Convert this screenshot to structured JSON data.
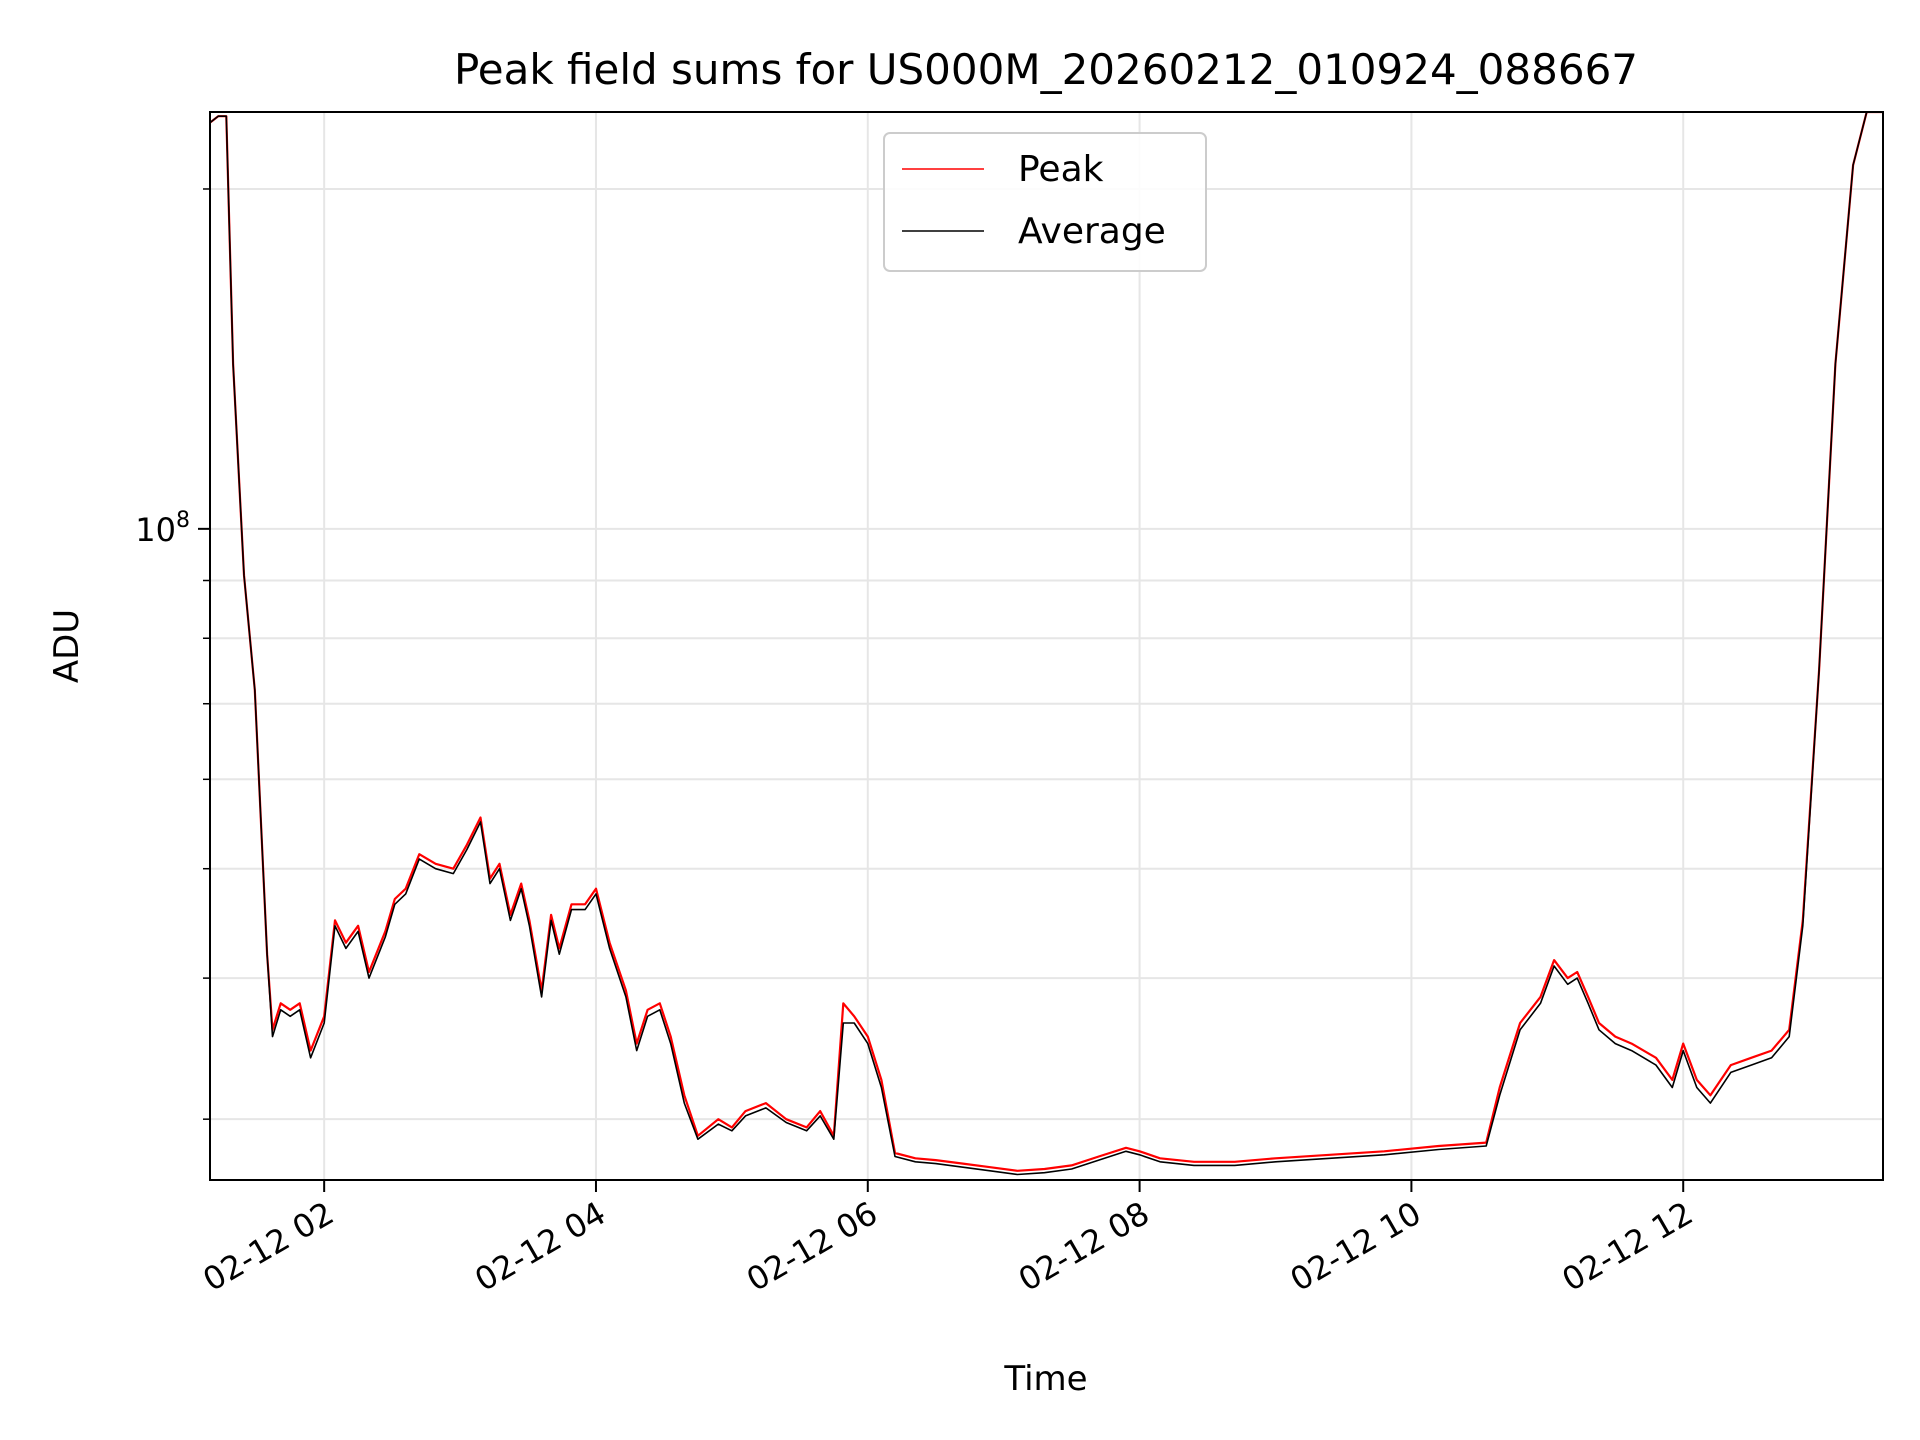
{
  "chart_data": {
    "type": "line",
    "title": "Peak field sums for US000M_20260212_010924_088667",
    "xlabel": "Time",
    "ylabel": "ADU",
    "yscale": "log",
    "ylim": [
      26500000,
      234000000
    ],
    "xlim": [
      1.16,
      13.47
    ],
    "x_ticks": [
      {
        "value": 2,
        "label": "02-12 02"
      },
      {
        "value": 4,
        "label": "02-12 04"
      },
      {
        "value": 6,
        "label": "02-12 06"
      },
      {
        "value": 8,
        "label": "02-12 08"
      },
      {
        "value": 10,
        "label": "02-12 10"
      },
      {
        "value": 12,
        "label": "02-12 12"
      }
    ],
    "y_major_tick": {
      "value": 100000000,
      "base": "10",
      "exponent": "8"
    },
    "y_minor_ticks": [
      30000000,
      40000000,
      50000000,
      60000000,
      70000000,
      80000000,
      90000000,
      200000000
    ],
    "grid": true,
    "legend_position": "upper-center",
    "series": [
      {
        "name": "Peak",
        "color": "#ff0000",
        "points": [
          [
            1.16,
            229000000
          ],
          [
            1.22,
            232000000
          ],
          [
            1.28,
            232000000
          ],
          [
            1.33,
            140000000
          ],
          [
            1.41,
            91000000
          ],
          [
            1.49,
            72000000
          ],
          [
            1.58,
            42000000
          ],
          [
            1.62,
            36000000
          ],
          [
            1.68,
            38000000
          ],
          [
            1.75,
            37500000
          ],
          [
            1.82,
            38000000
          ],
          [
            1.9,
            34500000
          ],
          [
            2.0,
            37000000
          ],
          [
            2.08,
            45000000
          ],
          [
            2.16,
            43000000
          ],
          [
            2.25,
            44500000
          ],
          [
            2.33,
            40500000
          ],
          [
            2.45,
            44000000
          ],
          [
            2.52,
            47000000
          ],
          [
            2.6,
            48000000
          ],
          [
            2.7,
            51500000
          ],
          [
            2.82,
            50500000
          ],
          [
            2.95,
            50000000
          ],
          [
            3.05,
            52500000
          ],
          [
            3.15,
            55500000
          ],
          [
            3.22,
            49000000
          ],
          [
            3.29,
            50500000
          ],
          [
            3.37,
            45500000
          ],
          [
            3.45,
            48500000
          ],
          [
            3.51,
            45000000
          ],
          [
            3.6,
            39000000
          ],
          [
            3.67,
            45500000
          ],
          [
            3.73,
            42500000
          ],
          [
            3.82,
            46500000
          ],
          [
            3.92,
            46500000
          ],
          [
            4.0,
            48000000
          ],
          [
            4.1,
            43000000
          ],
          [
            4.22,
            39000000
          ],
          [
            4.3,
            35000000
          ],
          [
            4.38,
            37500000
          ],
          [
            4.47,
            38000000
          ],
          [
            4.55,
            35500000
          ],
          [
            4.65,
            31500000
          ],
          [
            4.75,
            29000000
          ],
          [
            4.9,
            30000000
          ],
          [
            5.0,
            29500000
          ],
          [
            5.1,
            30500000
          ],
          [
            5.25,
            31000000
          ],
          [
            5.4,
            30000000
          ],
          [
            5.55,
            29500000
          ],
          [
            5.65,
            30500000
          ],
          [
            5.75,
            29000000
          ],
          [
            5.82,
            38000000
          ],
          [
            5.9,
            37000000
          ],
          [
            6.0,
            35500000
          ],
          [
            6.1,
            32500000
          ],
          [
            6.2,
            28000000
          ],
          [
            6.35,
            27700000
          ],
          [
            6.5,
            27600000
          ],
          [
            6.7,
            27400000
          ],
          [
            6.9,
            27200000
          ],
          [
            7.1,
            27000000
          ],
          [
            7.3,
            27100000
          ],
          [
            7.5,
            27300000
          ],
          [
            7.7,
            27800000
          ],
          [
            7.9,
            28300000
          ],
          [
            8.0,
            28100000
          ],
          [
            8.15,
            27700000
          ],
          [
            8.4,
            27500000
          ],
          [
            8.7,
            27500000
          ],
          [
            9.0,
            27700000
          ],
          [
            9.4,
            27900000
          ],
          [
            9.8,
            28100000
          ],
          [
            10.2,
            28400000
          ],
          [
            10.55,
            28600000
          ],
          [
            10.65,
            32000000
          ],
          [
            10.8,
            36500000
          ],
          [
            10.95,
            38500000
          ],
          [
            11.05,
            41500000
          ],
          [
            11.15,
            40000000
          ],
          [
            11.22,
            40500000
          ],
          [
            11.3,
            38500000
          ],
          [
            11.38,
            36500000
          ],
          [
            11.5,
            35500000
          ],
          [
            11.62,
            35000000
          ],
          [
            11.8,
            34000000
          ],
          [
            11.92,
            32500000
          ],
          [
            12.0,
            35000000
          ],
          [
            12.1,
            32500000
          ],
          [
            12.2,
            31500000
          ],
          [
            12.35,
            33500000
          ],
          [
            12.5,
            34000000
          ],
          [
            12.65,
            34500000
          ],
          [
            12.78,
            36000000
          ],
          [
            12.88,
            45000000
          ],
          [
            13.0,
            75000000
          ],
          [
            13.12,
            140000000
          ],
          [
            13.25,
            210000000
          ],
          [
            13.35,
            234000000
          ],
          [
            13.47,
            234000000
          ]
        ]
      },
      {
        "name": "Average",
        "color": "#000000",
        "points": [
          [
            1.16,
            229000000
          ],
          [
            1.22,
            232000000
          ],
          [
            1.28,
            232000000
          ],
          [
            1.33,
            140000000
          ],
          [
            1.41,
            91000000
          ],
          [
            1.49,
            72000000
          ],
          [
            1.58,
            42000000
          ],
          [
            1.62,
            35500000
          ],
          [
            1.68,
            37500000
          ],
          [
            1.75,
            37000000
          ],
          [
            1.82,
            37500000
          ],
          [
            1.9,
            34000000
          ],
          [
            2.0,
            36500000
          ],
          [
            2.08,
            44500000
          ],
          [
            2.16,
            42500000
          ],
          [
            2.25,
            44000000
          ],
          [
            2.33,
            40000000
          ],
          [
            2.45,
            43500000
          ],
          [
            2.52,
            46500000
          ],
          [
            2.6,
            47500000
          ],
          [
            2.7,
            51000000
          ],
          [
            2.82,
            50000000
          ],
          [
            2.95,
            49500000
          ],
          [
            3.05,
            52000000
          ],
          [
            3.15,
            55000000
          ],
          [
            3.22,
            48500000
          ],
          [
            3.29,
            50000000
          ],
          [
            3.37,
            45000000
          ],
          [
            3.45,
            48000000
          ],
          [
            3.51,
            44500000
          ],
          [
            3.6,
            38500000
          ],
          [
            3.67,
            45000000
          ],
          [
            3.73,
            42000000
          ],
          [
            3.82,
            46000000
          ],
          [
            3.92,
            46000000
          ],
          [
            4.0,
            47500000
          ],
          [
            4.1,
            42500000
          ],
          [
            4.22,
            38500000
          ],
          [
            4.3,
            34500000
          ],
          [
            4.38,
            37000000
          ],
          [
            4.47,
            37500000
          ],
          [
            4.55,
            35000000
          ],
          [
            4.65,
            31000000
          ],
          [
            4.75,
            28800000
          ],
          [
            4.9,
            29700000
          ],
          [
            5.0,
            29300000
          ],
          [
            5.1,
            30200000
          ],
          [
            5.25,
            30700000
          ],
          [
            5.4,
            29800000
          ],
          [
            5.55,
            29300000
          ],
          [
            5.65,
            30200000
          ],
          [
            5.75,
            28800000
          ],
          [
            5.82,
            36500000
          ],
          [
            5.9,
            36500000
          ],
          [
            6.0,
            35000000
          ],
          [
            6.1,
            32000000
          ],
          [
            6.2,
            27800000
          ],
          [
            6.35,
            27500000
          ],
          [
            6.5,
            27400000
          ],
          [
            6.7,
            27200000
          ],
          [
            6.9,
            27000000
          ],
          [
            7.1,
            26800000
          ],
          [
            7.3,
            26900000
          ],
          [
            7.5,
            27100000
          ],
          [
            7.7,
            27600000
          ],
          [
            7.9,
            28100000
          ],
          [
            8.0,
            27900000
          ],
          [
            8.15,
            27500000
          ],
          [
            8.4,
            27300000
          ],
          [
            8.7,
            27300000
          ],
          [
            9.0,
            27500000
          ],
          [
            9.4,
            27700000
          ],
          [
            9.8,
            27900000
          ],
          [
            10.2,
            28200000
          ],
          [
            10.55,
            28400000
          ],
          [
            10.65,
            31500000
          ],
          [
            10.8,
            36000000
          ],
          [
            10.95,
            38000000
          ],
          [
            11.05,
            41000000
          ],
          [
            11.15,
            39500000
          ],
          [
            11.22,
            40000000
          ],
          [
            11.3,
            38000000
          ],
          [
            11.38,
            36000000
          ],
          [
            11.5,
            35000000
          ],
          [
            11.62,
            34500000
          ],
          [
            11.8,
            33500000
          ],
          [
            11.92,
            32000000
          ],
          [
            12.0,
            34500000
          ],
          [
            12.1,
            32000000
          ],
          [
            12.2,
            31000000
          ],
          [
            12.35,
            33000000
          ],
          [
            12.5,
            33500000
          ],
          [
            12.65,
            34000000
          ],
          [
            12.78,
            35500000
          ],
          [
            12.88,
            44500000
          ],
          [
            13.0,
            75000000
          ],
          [
            13.12,
            140000000
          ],
          [
            13.25,
            210000000
          ],
          [
            13.35,
            234000000
          ],
          [
            13.47,
            234000000
          ]
        ]
      }
    ]
  }
}
